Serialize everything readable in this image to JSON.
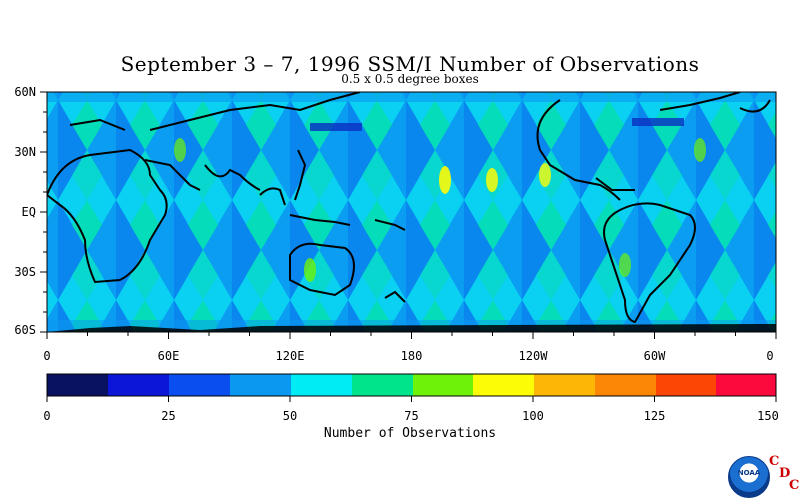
{
  "title": "September 3 – 7, 1996 SSM/I Number of Observations",
  "subtitle": "0.5 x 0.5 degree boxes",
  "map": {
    "lat_ticks": [
      "60N",
      "30N",
      "EQ",
      "30S",
      "60S"
    ],
    "lon_ticks": [
      "0",
      "60E",
      "120E",
      "180",
      "120W",
      "60W",
      "0"
    ],
    "extent": {
      "lon": [
        0,
        360
      ],
      "lat": [
        -60,
        60
      ]
    }
  },
  "colorbar": {
    "title": "Number of Observations",
    "ticks": [
      "0",
      "25",
      "50",
      "75",
      "100",
      "125",
      "150"
    ],
    "range": [
      0,
      150
    ],
    "colors": [
      "#08125e",
      "#0b16d8",
      "#0a4ef0",
      "#0a98f0",
      "#00ecf4",
      "#00e58c",
      "#6ef20a",
      "#fcfc06",
      "#fcb606",
      "#fc8606",
      "#fc4606",
      "#fc0a3e"
    ]
  },
  "logo": {
    "emblem_text": "NOAA",
    "letters": [
      "C",
      "D",
      "C"
    ]
  }
}
